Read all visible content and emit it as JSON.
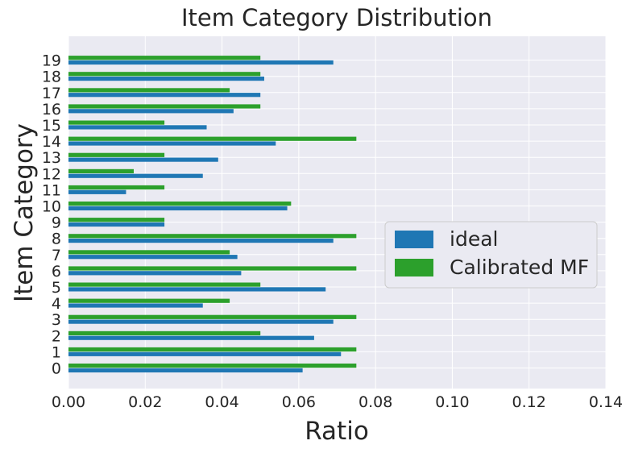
{
  "chart_data": {
    "type": "bar",
    "orientation": "horizontal",
    "title": "Item Category Distribution",
    "xlabel": "Ratio",
    "ylabel": "Item Category",
    "categories": [
      "0",
      "1",
      "2",
      "3",
      "4",
      "5",
      "6",
      "7",
      "8",
      "9",
      "10",
      "11",
      "12",
      "13",
      "14",
      "15",
      "16",
      "17",
      "18",
      "19"
    ],
    "xlim": [
      0,
      0.14
    ],
    "xticks": [
      "0.00",
      "0.02",
      "0.04",
      "0.06",
      "0.08",
      "0.10",
      "0.12",
      "0.14"
    ],
    "grid": true,
    "legend_position": "center-right",
    "series": [
      {
        "name": "ideal",
        "color": "#1f77b4",
        "values": [
          0.061,
          0.071,
          0.064,
          0.069,
          0.035,
          0.067,
          0.045,
          0.044,
          0.069,
          0.025,
          0.057,
          0.015,
          0.035,
          0.039,
          0.054,
          0.036,
          0.043,
          0.05,
          0.051,
          0.069
        ]
      },
      {
        "name": "Calibrated MF",
        "color": "#2ca02c",
        "values": [
          0.075,
          0.075,
          0.05,
          0.075,
          0.042,
          0.05,
          0.075,
          0.042,
          0.075,
          0.025,
          0.058,
          0.025,
          0.017,
          0.025,
          0.075,
          0.025,
          0.05,
          0.042,
          0.05,
          0.05
        ]
      }
    ],
    "background_color": "#eaeaf2",
    "grid_color": "#ffffff"
  }
}
